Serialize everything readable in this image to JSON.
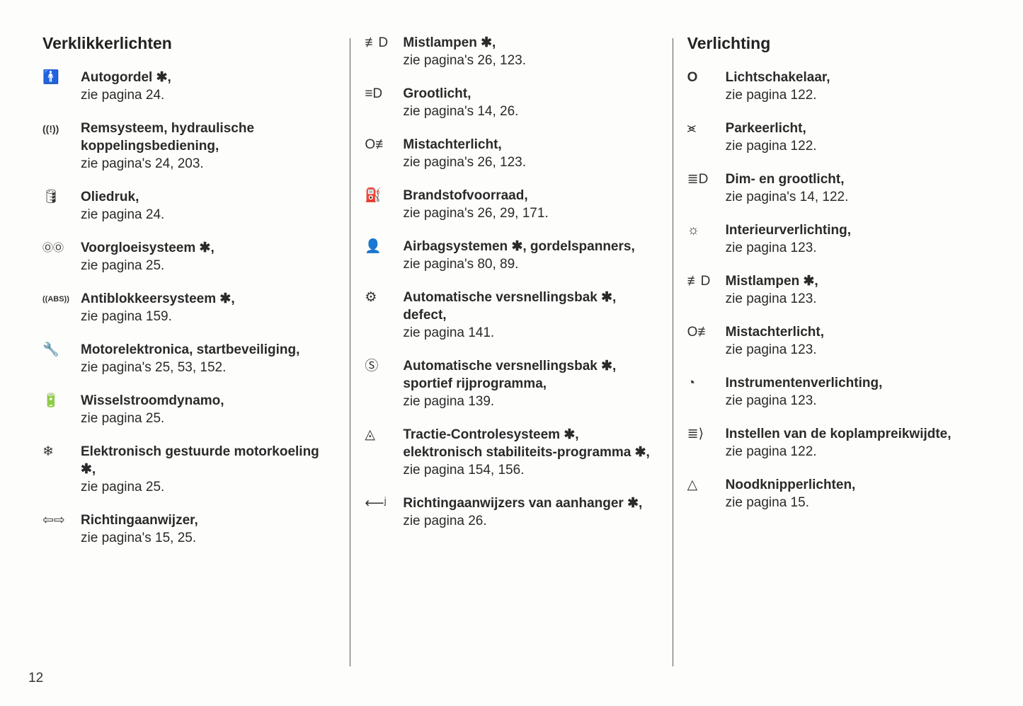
{
  "page_number": "12",
  "columns": [
    {
      "heading": "Verklikkerlichten",
      "items": [
        {
          "icon": "🚹",
          "label": "Autogordel ✱,",
          "see": "zie pagina 24."
        },
        {
          "icon": "((!))",
          "label": "Remsysteem, hydraulische koppelingsbediening,",
          "see": "zie pagina's 24, 203."
        },
        {
          "icon": "🛢",
          "label": "Oliedruk,",
          "see": "zie pagina 24."
        },
        {
          "icon": "ⓄⓄ",
          "label": "Voorgloeisysteem ✱,",
          "see": "zie pagina 25."
        },
        {
          "icon": "((ABS))",
          "label": "Antiblokkeersysteem ✱,",
          "see": "zie pagina 159."
        },
        {
          "icon": "🔧",
          "label": "Motorelektronica, startbeveiliging,",
          "see": "zie pagina's 25, 53, 152."
        },
        {
          "icon": "🔋",
          "label": "Wisselstroomdynamo,",
          "see": "zie pagina 25."
        },
        {
          "icon": "❄",
          "label": "Elektronisch gestuurde motorkoeling ✱,",
          "see": "zie pagina 25."
        },
        {
          "icon": "⇦⇨",
          "label": "Richtingaanwijzer,",
          "see": "zie pagina's 15, 25."
        }
      ]
    },
    {
      "heading": "",
      "items": [
        {
          "icon": "≢D",
          "label": "Mistlampen ✱,",
          "see": "zie pagina's 26, 123."
        },
        {
          "icon": "≡D",
          "label": "Grootlicht,",
          "see": "zie pagina's 14, 26."
        },
        {
          "icon": "O≢",
          "label": "Mistachterlicht,",
          "see": "zie pagina's 26, 123."
        },
        {
          "icon": "⛽",
          "label": "Brandstofvoorraad,",
          "see": "zie pagina's 26, 29, 171."
        },
        {
          "icon": "👤",
          "label": "Airbagsystemen ✱, gordelspanners,",
          "see": "zie pagina's 80, 89."
        },
        {
          "icon": "⚙",
          "label": "Automatische versnellingsbak ✱, defect,",
          "see": "zie pagina 141."
        },
        {
          "icon": "Ⓢ",
          "label": "Automatische versnellingsbak ✱, sportief rijprogramma,",
          "see": "zie pagina 139."
        },
        {
          "icon": "◬",
          "label": "Tractie-Controlesysteem ✱, elektronisch stabiliteits-programma ✱,",
          "see": "  zie pagina 154, 156."
        },
        {
          "icon": "⟵ʲ",
          "label": "Richtingaanwijzers van aanhanger ✱,",
          "see": "zie pagina 26."
        }
      ]
    },
    {
      "heading": "Verlichting",
      "items": [
        {
          "icon": "O",
          "label": "Lichtschakelaar,",
          "see": "zie pagina 122."
        },
        {
          "icon": "⪤",
          "label": "Parkeerlicht,",
          "see": "zie pagina 122."
        },
        {
          "icon": "≣D",
          "label": "Dim- en grootlicht,",
          "see": "zie pagina's 14, 122."
        },
        {
          "icon": "☼",
          "label": "Interieurverlichting,",
          "see": "zie pagina 123."
        },
        {
          "icon": "≢D",
          "label": "Mistlampen ✱,",
          "see": "zie pagina 123."
        },
        {
          "icon": "O≢",
          "label": "Mistachterlicht,",
          "see": "zie pagina 123."
        },
        {
          "icon": "◔",
          "label": "Instrumentenverlichting,",
          "see": "zie pagina 123."
        },
        {
          "icon": "≣⟩",
          "label": "Instellen van de koplampreikwijdte,",
          "see": "zie pagina 122."
        },
        {
          "icon": "△",
          "label": "Noodknipperlichten,",
          "see": "zie pagina 15."
        }
      ]
    }
  ]
}
